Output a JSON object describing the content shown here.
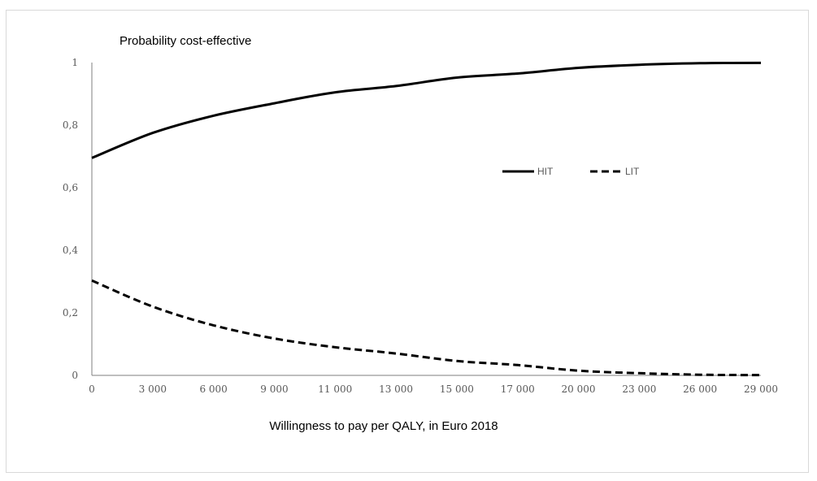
{
  "chart_data": {
    "type": "line",
    "title": "Probability cost-effective",
    "xlabel": "Willingness to pay per QALY, in Euro 2018",
    "ylabel": "",
    "xlim": [
      0,
      29000
    ],
    "ylim": [
      0,
      1
    ],
    "y_ticks": [
      0,
      0.2,
      0.4,
      0.6,
      0.8,
      1
    ],
    "y_tick_labels": [
      "0",
      "0,2",
      "0,4",
      "0,6",
      "0,8",
      "1"
    ],
    "x_ticks": [
      0,
      3000,
      6000,
      9000,
      11000,
      13000,
      15000,
      17000,
      20000,
      23000,
      26000,
      29000
    ],
    "x_tick_labels": [
      "0",
      "3 000",
      "6 000",
      "9 000",
      "11 000",
      "13 000",
      "15 000",
      "17 000",
      "20 000",
      "23 000",
      "26 000",
      "29 000"
    ],
    "grid": false,
    "legend_position": "center-right",
    "series": [
      {
        "name": "HIT",
        "style": "solid",
        "color": "#000000",
        "values": [
          0.695,
          0.775,
          0.83,
          0.87,
          0.905,
          0.925,
          0.952,
          0.965,
          0.983,
          0.993,
          0.998,
          0.999
        ]
      },
      {
        "name": "LIT",
        "style": "dashed",
        "color": "#000000",
        "values": [
          0.303,
          0.22,
          0.16,
          0.118,
          0.09,
          0.07,
          0.046,
          0.033,
          0.015,
          0.007,
          0.002,
          0.001
        ]
      }
    ]
  }
}
